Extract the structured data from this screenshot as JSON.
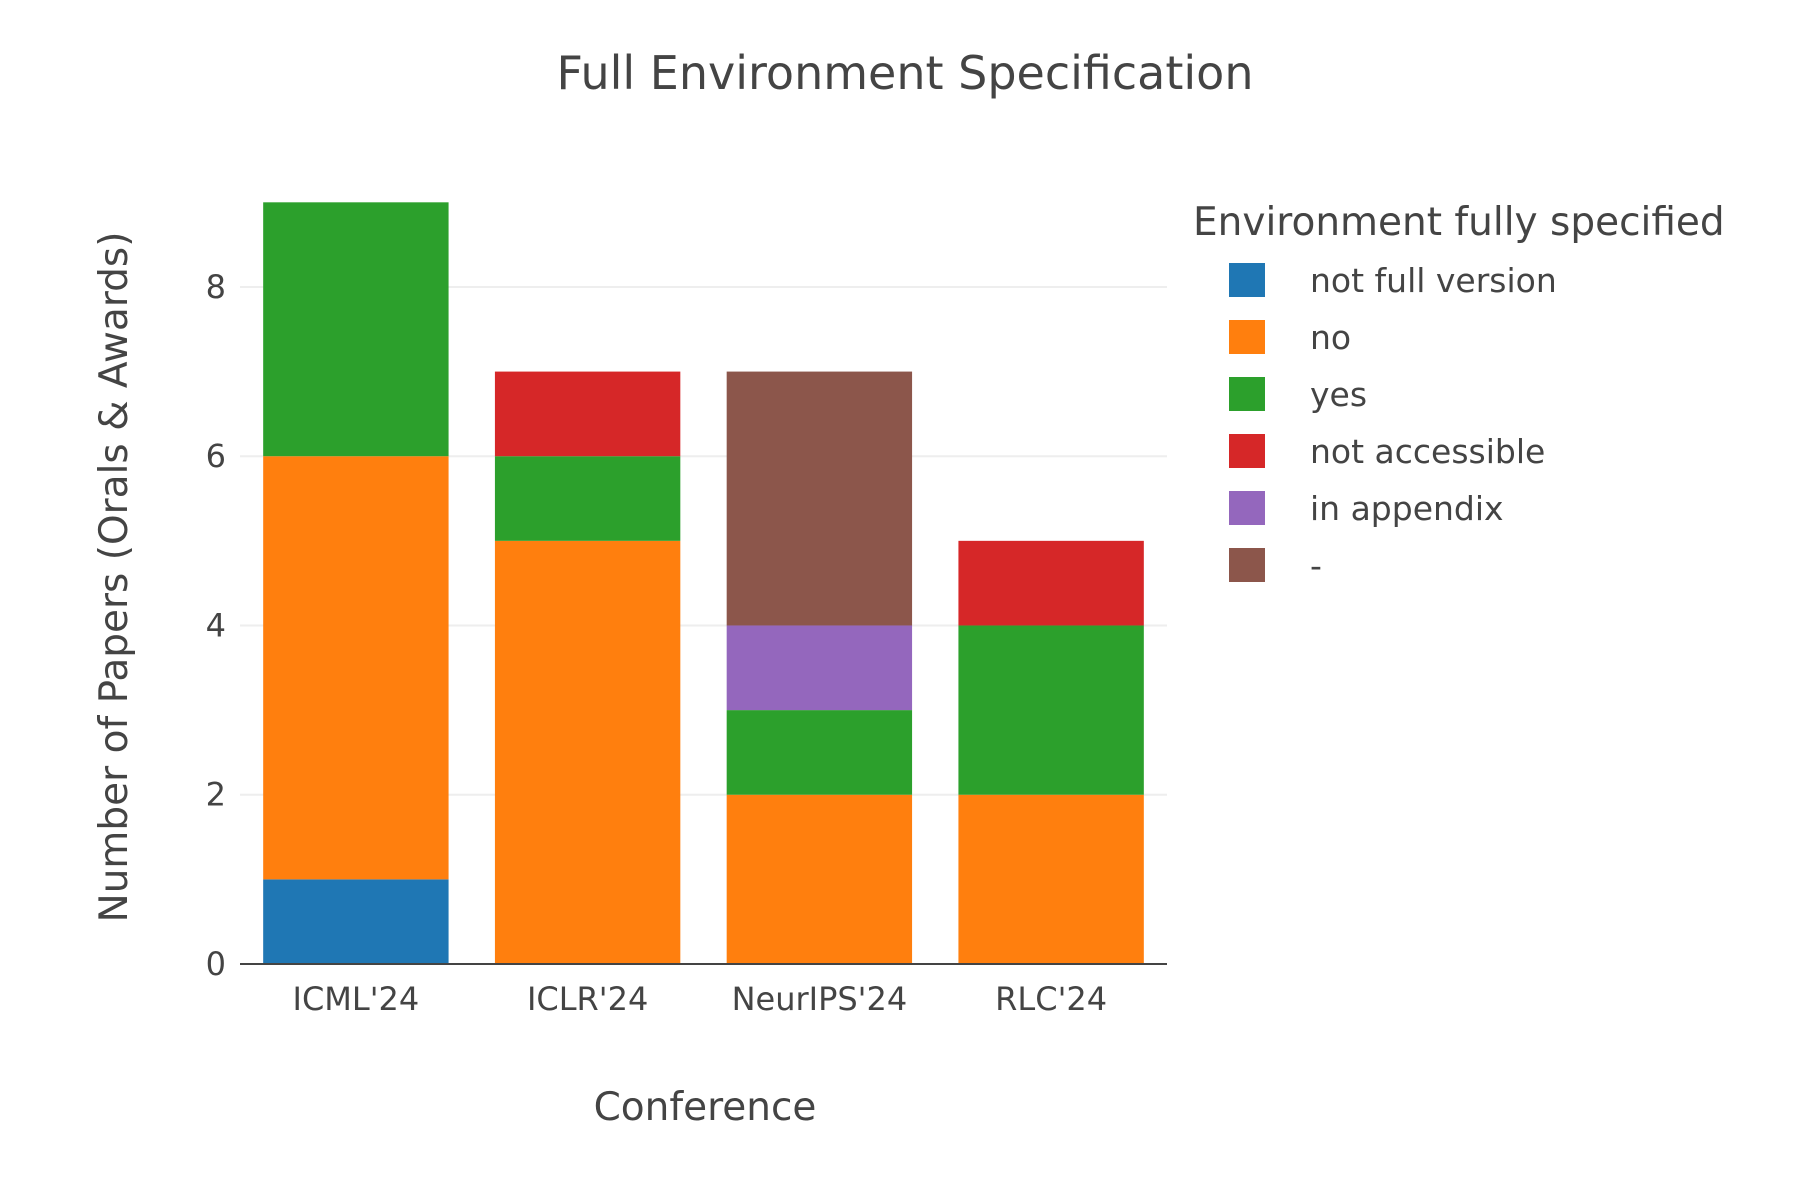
{
  "chart_data": {
    "type": "bar",
    "stacked": true,
    "title": "Full Environment Specification",
    "xlabel": "Conference",
    "ylabel": "Number of Papers (Orals & Awards)",
    "ylim": [
      0,
      9.5
    ],
    "yticks": [
      0,
      2,
      4,
      6,
      8
    ],
    "grid": true,
    "legend_title": "Environment fully specified",
    "legend_position": "right",
    "categories": [
      "ICML'24",
      "ICLR'24",
      "NeurIPS'24",
      "RLC'24"
    ],
    "series": [
      {
        "name": "not full version",
        "color": "#1f77b4",
        "values": [
          1,
          0,
          0,
          0
        ]
      },
      {
        "name": "no",
        "color": "#ff7f0e",
        "values": [
          5,
          5,
          2,
          2
        ]
      },
      {
        "name": "yes",
        "color": "#2ca02c",
        "values": [
          3,
          1,
          1,
          2
        ]
      },
      {
        "name": "not accessible",
        "color": "#d62728",
        "values": [
          0,
          1,
          0,
          1
        ]
      },
      {
        "name": "in appendix",
        "color": "#9467bd",
        "values": [
          0,
          0,
          1,
          0
        ]
      },
      {
        "name": "-",
        "color": "#8c564b",
        "values": [
          0,
          0,
          3,
          0
        ]
      }
    ]
  }
}
